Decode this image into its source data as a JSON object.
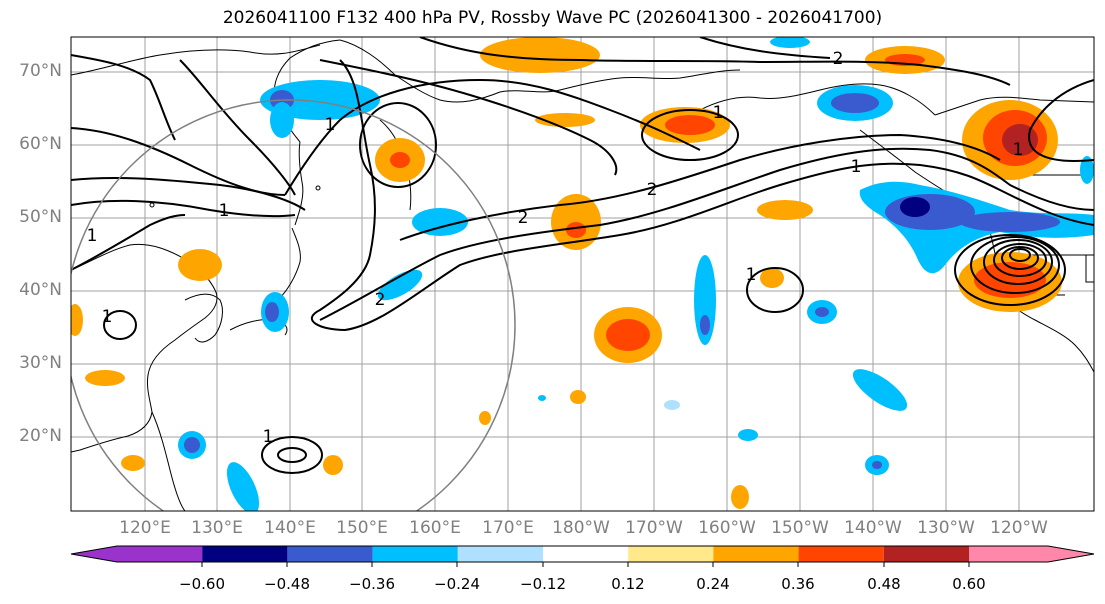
{
  "title": "2026041100 F132 400 hPa PV, Rossby Wave PC (2026041300 - 2026041700)",
  "lat_labels": [
    "70°N",
    "60°N",
    "50°N",
    "40°N",
    "30°N",
    "20°N"
  ],
  "lon_labels": [
    "120°E",
    "130°E",
    "140°E",
    "150°E",
    "160°E",
    "170°E",
    "180°W",
    "170°W",
    "160°W",
    "150°W",
    "140°W",
    "130°W",
    "120°W"
  ],
  "contour_labels": [
    "1",
    "1",
    "1",
    "2",
    "2",
    "1",
    "1",
    "2",
    "1",
    "1",
    "1",
    "1",
    "2"
  ],
  "colorbar": {
    "ticks": [
      "−0.60",
      "−0.48",
      "−0.36",
      "−0.24",
      "−0.12",
      "0.12",
      "0.24",
      "0.36",
      "0.48",
      "0.60"
    ],
    "colors": [
      "#9933cc",
      "#000080",
      "#3a5bd0",
      "#00bfff",
      "#b0e0ff",
      "#ffffff",
      "#ffe98a",
      "#ffa500",
      "#ff4500",
      "#b22222",
      "#ff88aa",
      "#ff88aa"
    ]
  }
}
